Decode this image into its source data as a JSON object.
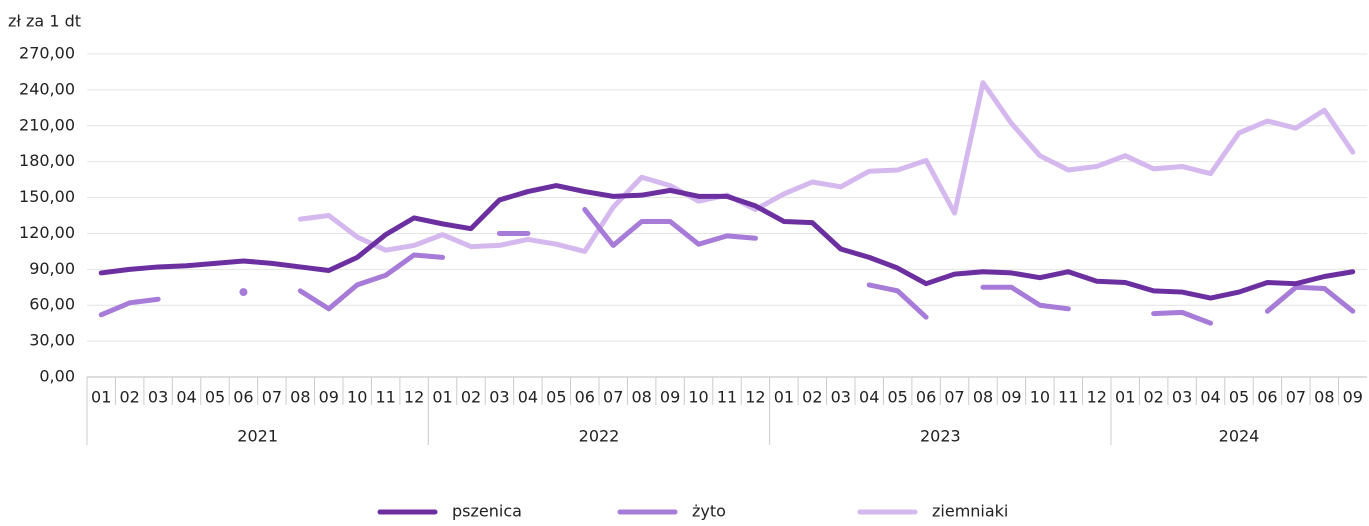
{
  "chart_data": {
    "type": "line",
    "y_axis_label": "zł za 1 dt",
    "categories": [
      "01",
      "02",
      "03",
      "04",
      "05",
      "06",
      "07",
      "08",
      "09",
      "10",
      "11",
      "12",
      "01",
      "02",
      "03",
      "04",
      "05",
      "06",
      "07",
      "08",
      "09",
      "10",
      "11",
      "12",
      "01",
      "02",
      "03",
      "04",
      "05",
      "06",
      "07",
      "08",
      "09",
      "10",
      "11",
      "12",
      "01",
      "02",
      "03",
      "04",
      "05",
      "06",
      "07",
      "08",
      "09"
    ],
    "years": [
      "2021",
      "2022",
      "2023",
      "2024"
    ],
    "ylim": [
      0,
      270
    ],
    "yticks": [
      {
        "value": 0,
        "label": "0,00"
      },
      {
        "value": 30,
        "label": "30,00"
      },
      {
        "value": 60,
        "label": "60,00"
      },
      {
        "value": 90,
        "label": "90,00"
      },
      {
        "value": 120,
        "label": "120,00"
      },
      {
        "value": 150,
        "label": "150,00"
      },
      {
        "value": 180,
        "label": "180,00"
      },
      {
        "value": 210,
        "label": "210,00"
      },
      {
        "value": 240,
        "label": "240,00"
      },
      {
        "value": 270,
        "label": "270,00"
      }
    ],
    "grid": true,
    "legend": "bottom",
    "series": [
      {
        "name": "pszenica",
        "color": "#6b2fa0",
        "values": [
          87,
          90,
          92,
          93,
          95,
          97,
          95,
          92,
          89,
          100,
          119,
          133,
          128,
          124,
          148,
          155,
          160,
          155,
          151,
          152,
          156,
          151,
          151,
          143,
          130,
          129,
          107,
          100,
          91,
          78,
          86,
          88,
          87,
          83,
          88,
          80,
          79,
          72,
          71,
          66,
          71,
          79,
          78,
          84,
          88
        ]
      },
      {
        "name": "żyto",
        "color": "#a77bd8",
        "values": [
          52,
          62,
          65,
          null,
          null,
          71,
          null,
          72,
          57,
          77,
          85,
          102,
          100,
          null,
          120,
          120,
          null,
          140,
          110,
          130,
          130,
          111,
          118,
          116,
          null,
          null,
          null,
          77,
          72,
          50,
          null,
          75,
          75,
          60,
          57,
          null,
          null,
          53,
          54,
          45,
          null,
          55,
          75,
          74,
          55
        ]
      },
      {
        "name": "ziemniaki",
        "color": "#d4b8ee",
        "values": [
          null,
          null,
          null,
          null,
          null,
          null,
          null,
          132,
          135,
          117,
          106,
          110,
          119,
          109,
          110,
          115,
          111,
          105,
          142,
          167,
          160,
          147,
          152,
          140,
          153,
          163,
          159,
          172,
          173,
          181,
          137,
          246,
          212,
          185,
          173,
          176,
          185,
          174,
          176,
          170,
          204,
          214,
          208,
          223,
          188
        ]
      }
    ]
  }
}
